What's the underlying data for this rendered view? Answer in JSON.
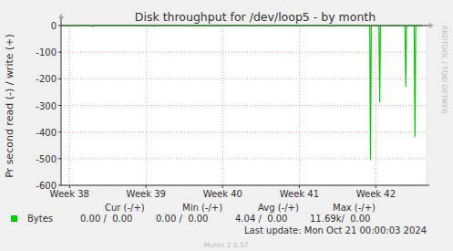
{
  "chart_data": {
    "type": "line",
    "title": "Disk throughput for /dev/loop5 - by month",
    "y_label": "Pr second read (-) / write (+)",
    "watermark": "RRDTOOL / TOBI OETIKER",
    "series": [
      {
        "name": "Bytes",
        "color": "#00cc00",
        "x": [
          37.9,
          38.3,
          38.31,
          38.32,
          39.1,
          39.11,
          39.12,
          41.92,
          41.93,
          41.94,
          42.04,
          42.05,
          42.06,
          42.38,
          42.39,
          42.4,
          42.5,
          42.51,
          42.52,
          42.61
        ],
        "values": [
          0,
          0,
          -3,
          0,
          0,
          -3,
          0,
          0,
          -505,
          0,
          0,
          -288,
          0,
          0,
          -230,
          0,
          0,
          -418,
          0,
          0
        ]
      }
    ],
    "xlim": [
      37.89,
      42.65
    ],
    "xticks": [
      {
        "value": 38,
        "label": "Week 38"
      },
      {
        "value": 39,
        "label": "Week 39"
      },
      {
        "value": 40,
        "label": "Week 40"
      },
      {
        "value": 41,
        "label": "Week 41"
      },
      {
        "value": 42,
        "label": "Week 42"
      }
    ],
    "ylim": [
      -600,
      0
    ],
    "yticks": [
      -600,
      -500,
      -400,
      -300,
      -200,
      -100,
      0
    ],
    "grid": true,
    "summary": {
      "columns": [
        "Cur (-/+)",
        "Min (-/+)",
        "Avg (-/+)",
        "Max (-/+)"
      ],
      "row_label": "Bytes",
      "cells": [
        "0.00 /  0.00",
        "0.00 /  0.00",
        "4.04 /  0.00",
        "11.69k/  0.00"
      ]
    },
    "last_update": "Last update: Mon Oct 21 00:00:03 2024",
    "footer": "Munin 2.0.57"
  }
}
